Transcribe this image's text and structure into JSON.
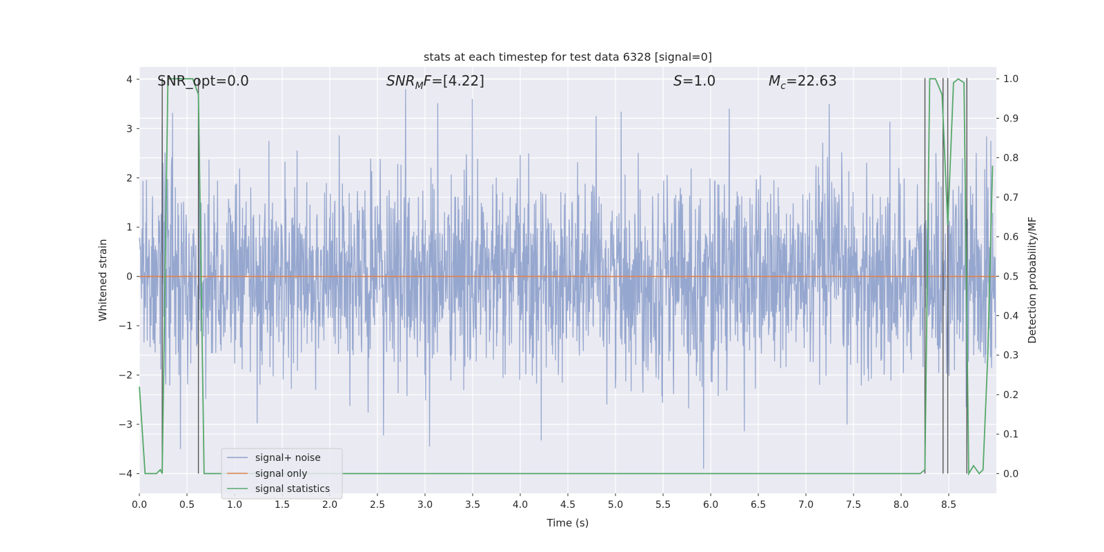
{
  "chart_data": {
    "type": "line",
    "title": "stats at each timestep for test data 6328 [signal=0]",
    "xlabel": "Time (s)",
    "ylabel_left": "Whitened strain",
    "ylabel_right": "Detection probability/MF",
    "xlim": [
      0.0,
      9.0
    ],
    "ylim_left": [
      -4.4,
      4.25
    ],
    "ylim_right": [
      -0.05,
      1.03
    ],
    "x_ticks": [
      "0.0",
      "0.5",
      "1.0",
      "1.5",
      "2.0",
      "2.5",
      "3.0",
      "3.5",
      "4.0",
      "4.5",
      "5.0",
      "5.5",
      "6.0",
      "6.5",
      "7.0",
      "7.5",
      "8.0",
      "8.5"
    ],
    "y_left_ticks": [
      "4",
      "3",
      "2",
      "1",
      "0",
      "−1",
      "−2",
      "−3",
      "−4"
    ],
    "y_right_ticks": [
      "1.0",
      "0.9",
      "0.8",
      "0.7",
      "0.6",
      "0.5",
      "0.4",
      "0.3",
      "0.2",
      "0.1",
      "0.0"
    ],
    "grid": true,
    "legend_position": "lower-left",
    "annotations": {
      "snr_opt": "SNR_opt=0.0",
      "snr_mf": "=[4.22]",
      "s_value": "=1.0",
      "mc_value": "=22.63"
    },
    "series": [
      {
        "name": "signal+ noise",
        "color": "#8da0cb",
        "style": "dense noise trace, roughly gaussian between -2 and 2 with spikes to about +/-3.8",
        "notable_points": [
          [
            0.24,
            3.1
          ],
          [
            2.8,
            3.8
          ],
          [
            3.5,
            3.6
          ],
          [
            3.05,
            -3.45
          ],
          [
            5.93,
            -4.0
          ],
          [
            7.25,
            3.5
          ],
          [
            0.43,
            -3.5
          ]
        ]
      },
      {
        "name": "signal only",
        "color": "#dd8452",
        "x": [
          0.0,
          9.0
        ],
        "y": [
          0.0,
          0.0
        ]
      },
      {
        "name": "signal statistics",
        "color": "#55a868",
        "x": [
          0.0,
          0.06,
          0.18,
          0.22,
          0.24,
          0.3,
          0.5,
          0.56,
          0.62,
          0.68,
          8.2,
          8.25,
          8.3,
          8.36,
          8.43,
          8.49,
          8.55,
          8.6,
          8.66,
          8.71,
          8.76,
          8.82,
          8.86,
          8.91,
          8.96
        ],
        "y": [
          0.22,
          0.0,
          0.0,
          0.01,
          0.0,
          1.0,
          1.0,
          1.0,
          0.96,
          0.0,
          0.0,
          0.01,
          1.0,
          1.0,
          0.96,
          0.63,
          0.99,
          1.0,
          0.99,
          0.0,
          0.02,
          0.0,
          0.01,
          0.3,
          0.78
        ]
      }
    ],
    "vertical_markers_x": [
      0.24,
      0.62,
      8.25,
      8.44,
      8.49,
      8.69
    ]
  }
}
